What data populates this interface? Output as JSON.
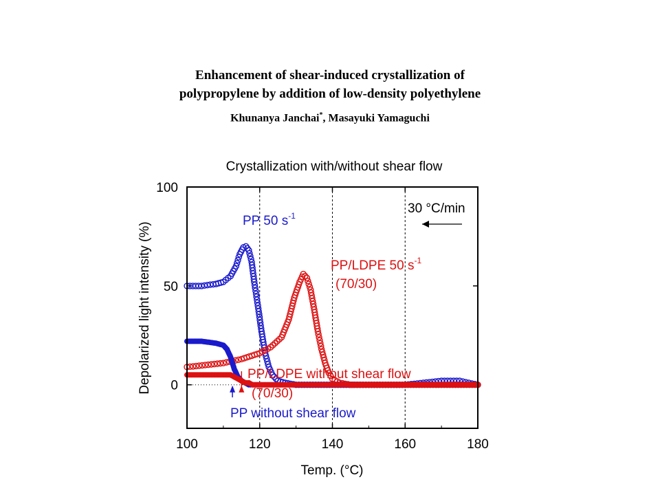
{
  "paper": {
    "title_line1": "Enhancement of shear-induced crystallization of",
    "title_line2": "polypropylene by addition of low-density polyethylene",
    "author1": "Khunanya Janchai",
    "author1_mark": "*",
    "author_sep": ", ",
    "author2": "Masayuki Yamaguchi"
  },
  "chart_data": {
    "type": "scatter",
    "title": "Crystallization with/without shear flow",
    "xlabel": "Temp. (°C)",
    "ylabel": "Depolarized light intensity (%)",
    "xlim": [
      100,
      180
    ],
    "ylim": [
      -22,
      100
    ],
    "xticks": [
      100,
      120,
      140,
      160,
      180
    ],
    "yticks": [
      0,
      50,
      100
    ],
    "grid": "vertical dashed at 120, 140, 160; horizontal dotted at 0",
    "rate_annotation": "30 °C/min",
    "annotation_colors": {
      "blue": "#1a1acc",
      "red": "#dd1111"
    },
    "series": [
      {
        "name": "PP 50 s-1",
        "label": "PP 50 s",
        "label_sup": "-1",
        "color": "#1a1acc",
        "marker": "open-circle",
        "x": [
          100,
          104,
          108,
          110,
          112,
          113.5,
          114.5,
          115.5,
          116.2,
          117,
          117.8,
          118.5,
          119.5,
          120.5,
          121.5,
          122.5,
          123.5,
          125,
          127,
          130,
          140,
          150,
          160,
          165,
          170,
          175,
          180
        ],
        "y": [
          50,
          50,
          51,
          52,
          55,
          60,
          66,
          69.5,
          70,
          68,
          62,
          52,
          40,
          27,
          16,
          9,
          5,
          2,
          1,
          0,
          0,
          0,
          0,
          1,
          2,
          2,
          0
        ]
      },
      {
        "name": "PP/LDPE 50 s-1 (70/30)",
        "label": "PP/LDPE 50 s",
        "label_sup": "-1",
        "label2": "(70/30)",
        "color": "#dd1111",
        "marker": "open-circle",
        "x": [
          100,
          105,
          110,
          115,
          120,
          123,
          126,
          128,
          129.5,
          131,
          132,
          133,
          134,
          135,
          136,
          137,
          138,
          139,
          140,
          142,
          145,
          150,
          160,
          170,
          180
        ],
        "y": [
          9,
          10,
          11,
          13,
          16,
          19,
          24,
          33,
          44,
          52,
          56,
          54,
          48,
          38,
          27,
          18,
          11,
          6,
          3,
          1,
          0,
          0,
          0,
          0,
          0
        ]
      },
      {
        "name": "PP without shear flow",
        "label": "PP without shear flow",
        "color": "#1a1acc",
        "marker": "filled-circle",
        "x": [
          100,
          104,
          108,
          110,
          111,
          112,
          113,
          114,
          115,
          116,
          117,
          118,
          120,
          125,
          130,
          140,
          150,
          160,
          170,
          180
        ],
        "y": [
          22,
          22,
          21,
          20,
          18,
          14,
          8,
          4,
          2,
          1,
          0,
          0,
          0,
          0,
          0,
          0,
          0,
          0,
          0,
          0
        ]
      },
      {
        "name": "PP/LDPE without shear flow (70/30)",
        "label": "PP/LDPE without shear flow",
        "label2": "(70/30)",
        "color": "#dd1111",
        "marker": "filled-circle",
        "x": [
          100,
          105,
          110,
          112,
          113,
          114,
          115,
          116,
          117,
          118,
          120,
          125,
          130,
          140,
          150,
          160,
          170,
          180
        ],
        "y": [
          5,
          5,
          5,
          5,
          4,
          3,
          2,
          1,
          1,
          0,
          0,
          0,
          0,
          0,
          0,
          0,
          0,
          0
        ]
      }
    ],
    "onset_arrows": [
      {
        "series": "PP without shear flow",
        "x": 112.5,
        "color": "#1a1acc"
      },
      {
        "series": "PP/LDPE without shear flow (70/30)",
        "x": 115,
        "color": "#dd1111"
      }
    ]
  }
}
